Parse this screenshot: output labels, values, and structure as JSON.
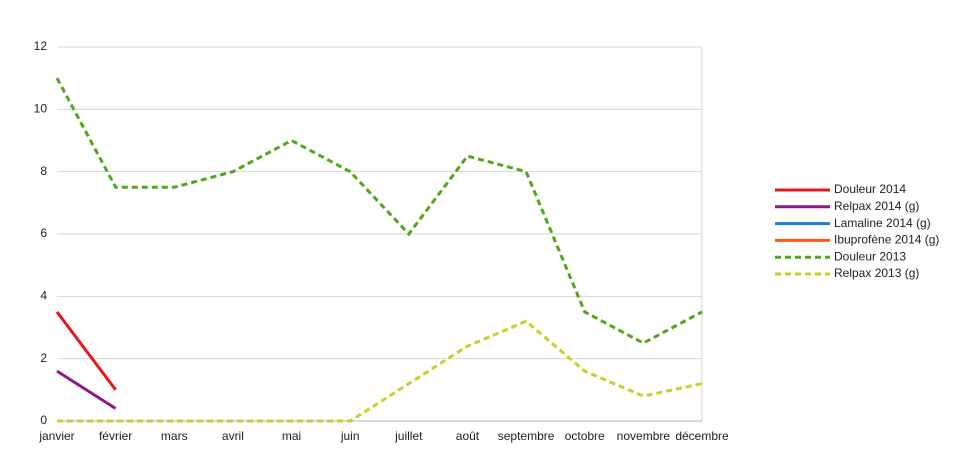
{
  "chart_data": {
    "type": "line",
    "categories": [
      "janvier",
      "février",
      "mars",
      "avril",
      "mai",
      "juin",
      "juillet",
      "août",
      "septembre",
      "octobre",
      "novembre",
      "décembre"
    ],
    "series": [
      {
        "name": "Douleur 2014",
        "color": "#e3191c",
        "dashed": false,
        "values": [
          3.5,
          1,
          null,
          null,
          null,
          null,
          null,
          null,
          null,
          null,
          null,
          null
        ]
      },
      {
        "name": "Relpax 2014 (g)",
        "color": "#8a1a8a",
        "dashed": false,
        "values": [
          1.6,
          0.4,
          null,
          null,
          null,
          null,
          null,
          null,
          null,
          null,
          null,
          null
        ]
      },
      {
        "name": "Lamaline 2014 (g)",
        "color": "#1a7fd6",
        "dashed": false,
        "values": [
          null,
          null,
          null,
          null,
          null,
          null,
          null,
          null,
          null,
          null,
          null,
          null
        ]
      },
      {
        "name": "Ibuprofène 2014 (g)",
        "color": "#ff5a1e",
        "dashed": false,
        "values": [
          null,
          null,
          null,
          null,
          null,
          null,
          null,
          null,
          null,
          null,
          null,
          null
        ]
      },
      {
        "name": "Douleur 2013",
        "color": "#4fa81a",
        "dashed": true,
        "values": [
          11,
          7.5,
          7.5,
          8,
          9,
          8,
          6,
          8.5,
          8,
          3.5,
          2.5,
          3.5
        ]
      },
      {
        "name": "Relpax 2013 (g)",
        "color": "#b5d92a",
        "dashed": true,
        "values": [
          0,
          0,
          0,
          0,
          0,
          0,
          1.2,
          2.4,
          3.2,
          1.6,
          0.8,
          1.2
        ]
      }
    ],
    "ylim": [
      0,
      12
    ],
    "yticks": [
      0,
      2,
      4,
      6,
      8,
      10,
      12
    ],
    "grid": true,
    "legend": "right"
  }
}
